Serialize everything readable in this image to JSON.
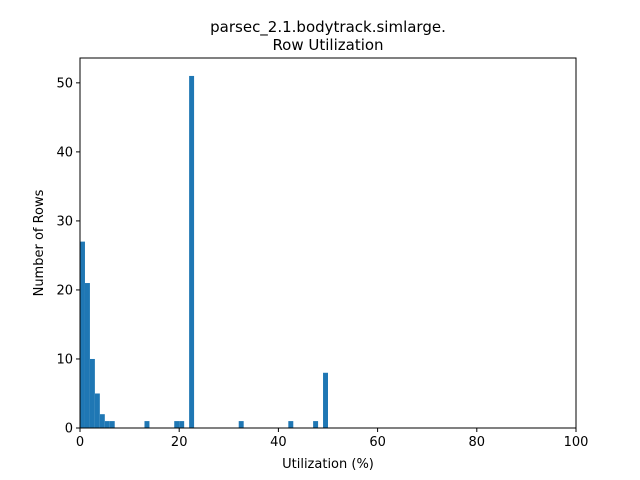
{
  "chart_data": {
    "type": "bar",
    "title_lines": [
      "parsec_2.1.bodytrack.simlarge.",
      "Row Utilization"
    ],
    "xlabel": "Utilization (%)",
    "ylabel": "Number of Rows",
    "xlim": [
      0,
      100
    ],
    "ylim": [
      0,
      53.6
    ],
    "xticks": [
      0,
      20,
      40,
      60,
      80,
      100
    ],
    "yticks": [
      0,
      10,
      20,
      30,
      40,
      50
    ],
    "bin_width": 1,
    "bar_color": "#1f77b4",
    "grid": false,
    "bins": [
      {
        "x": 0,
        "count": 27
      },
      {
        "x": 1,
        "count": 21
      },
      {
        "x": 2,
        "count": 10
      },
      {
        "x": 3,
        "count": 5
      },
      {
        "x": 4,
        "count": 2
      },
      {
        "x": 5,
        "count": 1
      },
      {
        "x": 6,
        "count": 1
      },
      {
        "x": 13,
        "count": 1
      },
      {
        "x": 19,
        "count": 1
      },
      {
        "x": 20,
        "count": 1
      },
      {
        "x": 22,
        "count": 51
      },
      {
        "x": 32,
        "count": 1
      },
      {
        "x": 42,
        "count": 1
      },
      {
        "x": 47,
        "count": 1
      },
      {
        "x": 49,
        "count": 8
      }
    ]
  }
}
